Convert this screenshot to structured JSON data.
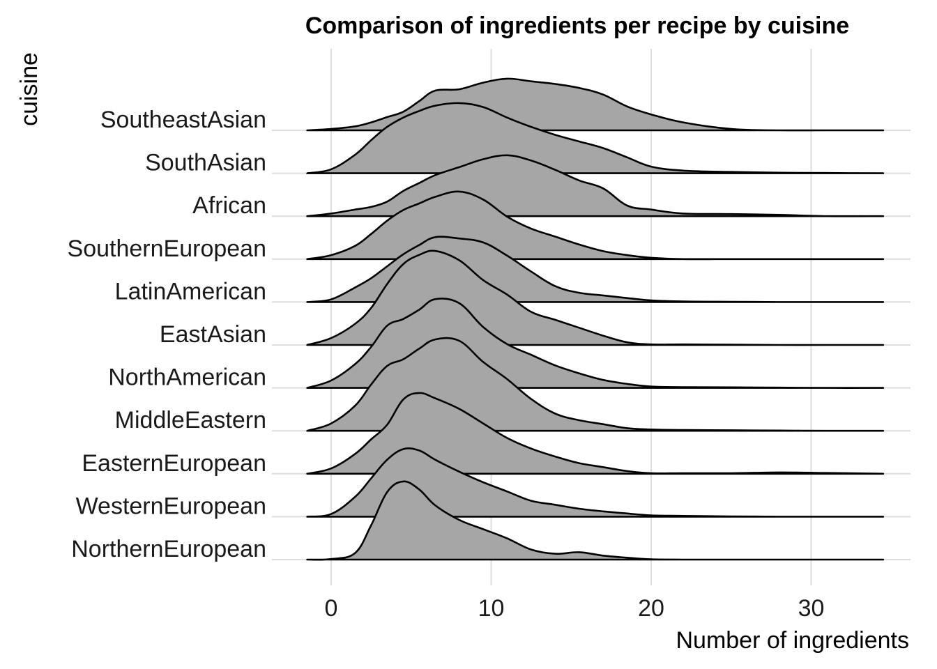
{
  "chart_data": {
    "type": "area",
    "subtype": "ridgeline",
    "title": "Comparison of ingredients per recipe by cuisine",
    "xlabel": "Number of ingredients",
    "ylabel": "cuisine",
    "xlim": [
      -1.5,
      34.5
    ],
    "x_ticks": [
      0,
      10,
      20,
      30
    ],
    "x_tick_labels": [
      "0",
      "10",
      "20",
      "30"
    ],
    "grid": true,
    "fill_color": "#a6a6a6",
    "line_color": "#000000",
    "categories": [
      "NorthernEuropean",
      "WesternEuropean",
      "EasternEuropean",
      "MiddleEastern",
      "NorthAmerican",
      "EastAsian",
      "LatinAmerican",
      "SouthernEuropean",
      "African",
      "SouthAsian",
      "SoutheastAsian"
    ],
    "x": [
      -1.5,
      0,
      1.5,
      2.5,
      3.5,
      4.5,
      5.5,
      6.5,
      8,
      9.5,
      11,
      12.5,
      14,
      15.5,
      17,
      18.5,
      20,
      22,
      25,
      28,
      31,
      34.5
    ],
    "series": [
      {
        "name": "NorthernEuropean",
        "values": [
          0,
          0.02,
          0.25,
          1.3,
          2.55,
          2.95,
          2.65,
          2.05,
          1.5,
          1.15,
          0.8,
          0.38,
          0.22,
          0.28,
          0.15,
          0.07,
          0.01,
          0,
          0,
          0,
          0,
          0
        ]
      },
      {
        "name": "WesternEuropean",
        "values": [
          0,
          0.1,
          0.75,
          1.45,
          2.15,
          2.55,
          2.5,
          2.15,
          1.7,
          1.3,
          0.95,
          0.6,
          0.45,
          0.3,
          0.2,
          0.12,
          0.05,
          0.03,
          0.01,
          0,
          0,
          0
        ]
      },
      {
        "name": "EasternEuropean",
        "values": [
          0,
          0.2,
          0.75,
          1.3,
          1.85,
          2.8,
          3.05,
          2.85,
          2.45,
          1.9,
          1.35,
          0.95,
          0.65,
          0.4,
          0.25,
          0.1,
          0.02,
          0.02,
          0.02,
          0.05,
          0.03,
          0
        ]
      },
      {
        "name": "MiddleEastern",
        "values": [
          0,
          0.28,
          0.95,
          1.75,
          2.45,
          2.7,
          3.1,
          3.45,
          3.4,
          2.6,
          1.95,
          1.2,
          0.65,
          0.4,
          0.25,
          0.1,
          0.05,
          0.03,
          0.02,
          0.01,
          0,
          0
        ]
      },
      {
        "name": "NorthAmerican",
        "values": [
          0,
          0.28,
          0.9,
          1.55,
          2.35,
          2.6,
          2.95,
          3.35,
          3.2,
          2.3,
          1.65,
          1.25,
          0.85,
          0.55,
          0.3,
          0.15,
          0.05,
          0.03,
          0.02,
          0.01,
          0,
          0
        ]
      },
      {
        "name": "EastAsian",
        "values": [
          0,
          0.26,
          0.8,
          1.4,
          2.3,
          3.05,
          3.4,
          3.55,
          3.2,
          2.45,
          1.9,
          1.25,
          0.95,
          0.65,
          0.35,
          0.1,
          0.02,
          0.02,
          0.01,
          0,
          0,
          0
        ]
      },
      {
        "name": "LatinAmerican",
        "values": [
          0,
          0.1,
          0.55,
          0.9,
          1.35,
          1.8,
          2.15,
          2.45,
          2.4,
          2.25,
          1.75,
          1.15,
          0.6,
          0.35,
          0.25,
          0.15,
          0.06,
          0.02,
          0.01,
          0,
          0,
          0
        ]
      },
      {
        "name": "SouthernEuropean",
        "values": [
          0,
          0.15,
          0.5,
          0.95,
          1.45,
          1.85,
          2.1,
          2.35,
          2.55,
          2.25,
          1.6,
          1.15,
          0.85,
          0.55,
          0.3,
          0.15,
          0.05,
          0,
          0,
          0,
          0,
          0
        ]
      },
      {
        "name": "African",
        "values": [
          0,
          0.1,
          0.25,
          0.35,
          0.55,
          0.95,
          1.25,
          1.55,
          1.85,
          2.15,
          2.3,
          2.1,
          1.75,
          1.35,
          1.05,
          0.4,
          0.25,
          0.1,
          0.08,
          0.05,
          0,
          0
        ]
      },
      {
        "name": "SouthAsian",
        "values": [
          0,
          0.15,
          0.7,
          1.25,
          1.75,
          2.1,
          2.35,
          2.55,
          2.65,
          2.5,
          2.1,
          1.75,
          1.45,
          1.2,
          0.95,
          0.6,
          0.25,
          0.1,
          0.05,
          0.02,
          0.01,
          0
        ]
      },
      {
        "name": "SoutheastAsian",
        "values": [
          0,
          0.05,
          0.15,
          0.3,
          0.5,
          0.7,
          1.1,
          1.5,
          1.55,
          1.8,
          1.95,
          1.85,
          1.75,
          1.6,
          1.35,
          0.9,
          0.6,
          0.3,
          0.05,
          0,
          0,
          0
        ]
      }
    ]
  }
}
